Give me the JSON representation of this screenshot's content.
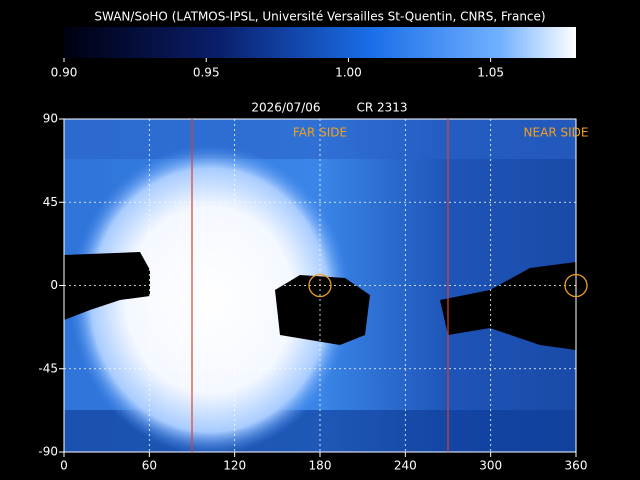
{
  "chart_data": {
    "type": "map",
    "title": "SWAN/SoHO (LATMOS-IPSL, Université Versailles St-Quentin, CNRS, France)",
    "date": "2026/07/06",
    "rotation": "CR 2313",
    "colorbar": {
      "lim": [
        0.9,
        1.08
      ],
      "ticks": [
        {
          "value": 0.9,
          "label": "0.90"
        },
        {
          "value": 0.95,
          "label": "0.95"
        },
        {
          "value": 1.0,
          "label": "1.00"
        },
        {
          "value": 1.05,
          "label": "1.05"
        }
      ]
    },
    "xlim": [
      0,
      360
    ],
    "ylim": [
      -90,
      90
    ],
    "xticks": [
      0,
      60,
      120,
      180,
      240,
      300,
      360
    ],
    "yticks": [
      90,
      45,
      0,
      -45,
      -90
    ],
    "grid": true,
    "lines": [
      {
        "x": 90,
        "color": "#e0402a"
      },
      {
        "x": 270,
        "color": "#e0402a"
      }
    ],
    "markers": [
      {
        "x": 180,
        "y": 0,
        "label": "FAR SIDE",
        "color": "#f0a020"
      },
      {
        "x": 360,
        "y": 0,
        "label": "NEAR SIDE",
        "color": "#f0a020"
      }
    ]
  }
}
